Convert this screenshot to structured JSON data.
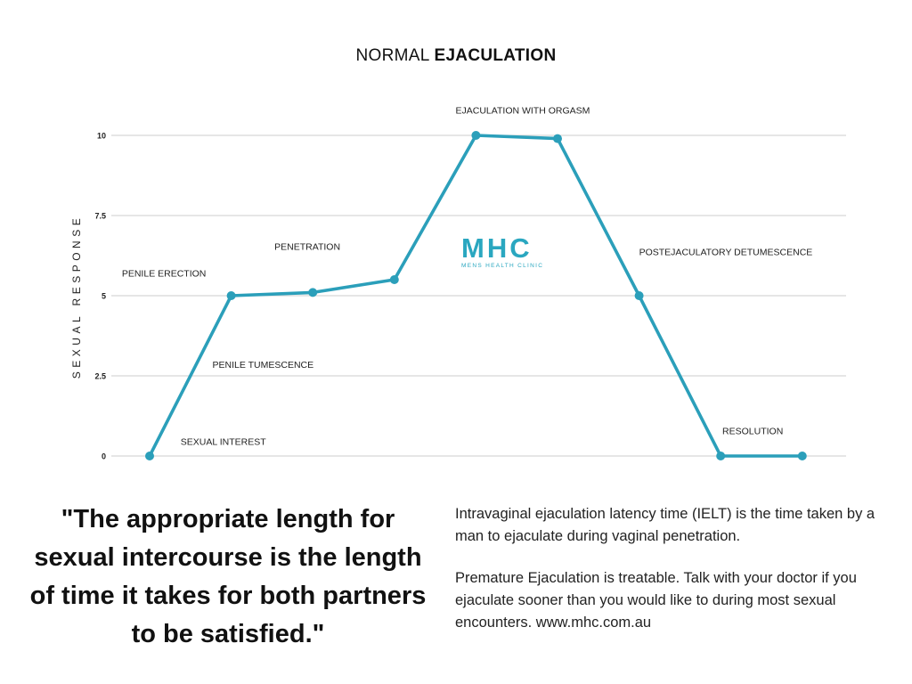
{
  "title_prefix": "NORMAL ",
  "title_emphasis": "EJACULATION",
  "logo": {
    "mark": "MHC",
    "subtitle": "MENS HEALTH CLINIC"
  },
  "quote": "\"The appropriate length for sexual intercourse is the length of time it takes for both partners to be satisfied.\"",
  "info": {
    "paragraph_1": "Intravaginal ejaculation latency time (IELT) is the time taken by a man to ejaculate during vaginal penetration.",
    "paragraph_2": "Premature Ejaculation is treatable. Talk with your doctor if you ejaculate sooner than you would like to during most sexual encounters. www.mhc.com.au"
  },
  "colors": {
    "line": "#2b9fba",
    "grid": "#d8d8d8",
    "logo": "#2aa7c0"
  },
  "chart_data": {
    "type": "line",
    "title": "NORMAL EJACULATION",
    "ylabel": "SEXUAL RESPONSE",
    "xlabel": "",
    "ylim": [
      0,
      10
    ],
    "yticks": [
      {
        "value": 0,
        "label": "0"
      },
      {
        "value": 2.5,
        "label": "2.5"
      },
      {
        "value": 5,
        "label": "5"
      },
      {
        "value": 7.5,
        "label": "7.5"
      },
      {
        "value": 10,
        "label": "10"
      }
    ],
    "grid": true,
    "x": [
      0,
      1,
      2,
      3,
      4,
      5,
      6,
      7,
      8
    ],
    "series": [
      {
        "values": [
          0,
          5,
          5.1,
          5.5,
          10,
          9.9,
          5,
          0,
          0
        ]
      }
    ],
    "annotations": [
      {
        "text": "SEXUAL INTEREST",
        "x": 0.38,
        "y": 0.35,
        "anchor": "start"
      },
      {
        "text": "PENILE TUMESCENCE",
        "x": 0.77,
        "y": 2.75,
        "anchor": "start"
      },
      {
        "text": "PENILE ERECTION",
        "x": -0.34,
        "y": 5.6,
        "anchor": "start"
      },
      {
        "text": "PENETRATION",
        "x": 1.53,
        "y": 6.43,
        "anchor": "start"
      },
      {
        "text": "EJACULATION WITH ORGASM",
        "x": 3.75,
        "y": 10.68,
        "anchor": "start"
      },
      {
        "text": "POSTEJACULATORY DETUMESCENCE",
        "x": 6,
        "y": 6.26,
        "anchor": "start"
      },
      {
        "text": "RESOLUTION",
        "x": 7.02,
        "y": 0.68,
        "anchor": "start"
      }
    ]
  }
}
